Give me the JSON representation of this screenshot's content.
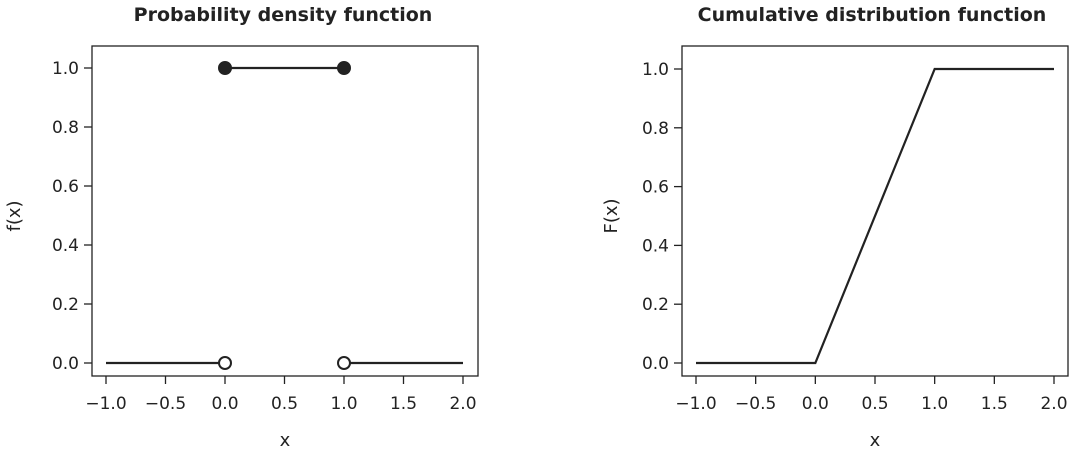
{
  "chart_data": [
    {
      "type": "line",
      "title": "Probability density function",
      "xlabel": "x",
      "ylabel": "f(x)",
      "xlim": [
        -1.0,
        2.0
      ],
      "ylim": [
        0.0,
        1.0
      ],
      "x_ticks": [
        "−1.0",
        "−0.5",
        "0.0",
        "0.5",
        "1.0",
        "1.5",
        "2.0"
      ],
      "y_ticks": [
        "0.0",
        "0.2",
        "0.4",
        "0.6",
        "0.8",
        "1.0"
      ],
      "grid": false,
      "color": "#222222",
      "segments": [
        {
          "x": [
            -1.0,
            0.0
          ],
          "y": [
            0.0,
            0.0
          ]
        },
        {
          "x": [
            0.0,
            1.0
          ],
          "y": [
            1.0,
            1.0
          ]
        },
        {
          "x": [
            1.0,
            2.0
          ],
          "y": [
            0.0,
            0.0
          ]
        }
      ],
      "points": [
        {
          "x": 0.0,
          "y": 1.0,
          "filled": true
        },
        {
          "x": 1.0,
          "y": 1.0,
          "filled": true
        },
        {
          "x": 0.0,
          "y": 0.0,
          "filled": false
        },
        {
          "x": 1.0,
          "y": 0.0,
          "filled": false
        }
      ]
    },
    {
      "type": "line",
      "title": "Cumulative distribution function",
      "xlabel": "x",
      "ylabel": "F(x)",
      "xlim": [
        -1.0,
        2.0
      ],
      "ylim": [
        0.0,
        1.0
      ],
      "x_ticks": [
        "−1.0",
        "−0.5",
        "0.0",
        "0.5",
        "1.0",
        "1.5",
        "2.0"
      ],
      "y_ticks": [
        "0.0",
        "0.2",
        "0.4",
        "0.6",
        "0.8",
        "1.0"
      ],
      "grid": false,
      "color": "#222222",
      "segments": [
        {
          "x": [
            -1.0,
            0.0,
            1.0,
            2.0
          ],
          "y": [
            0.0,
            0.0,
            1.0,
            1.0
          ]
        }
      ],
      "points": []
    }
  ]
}
